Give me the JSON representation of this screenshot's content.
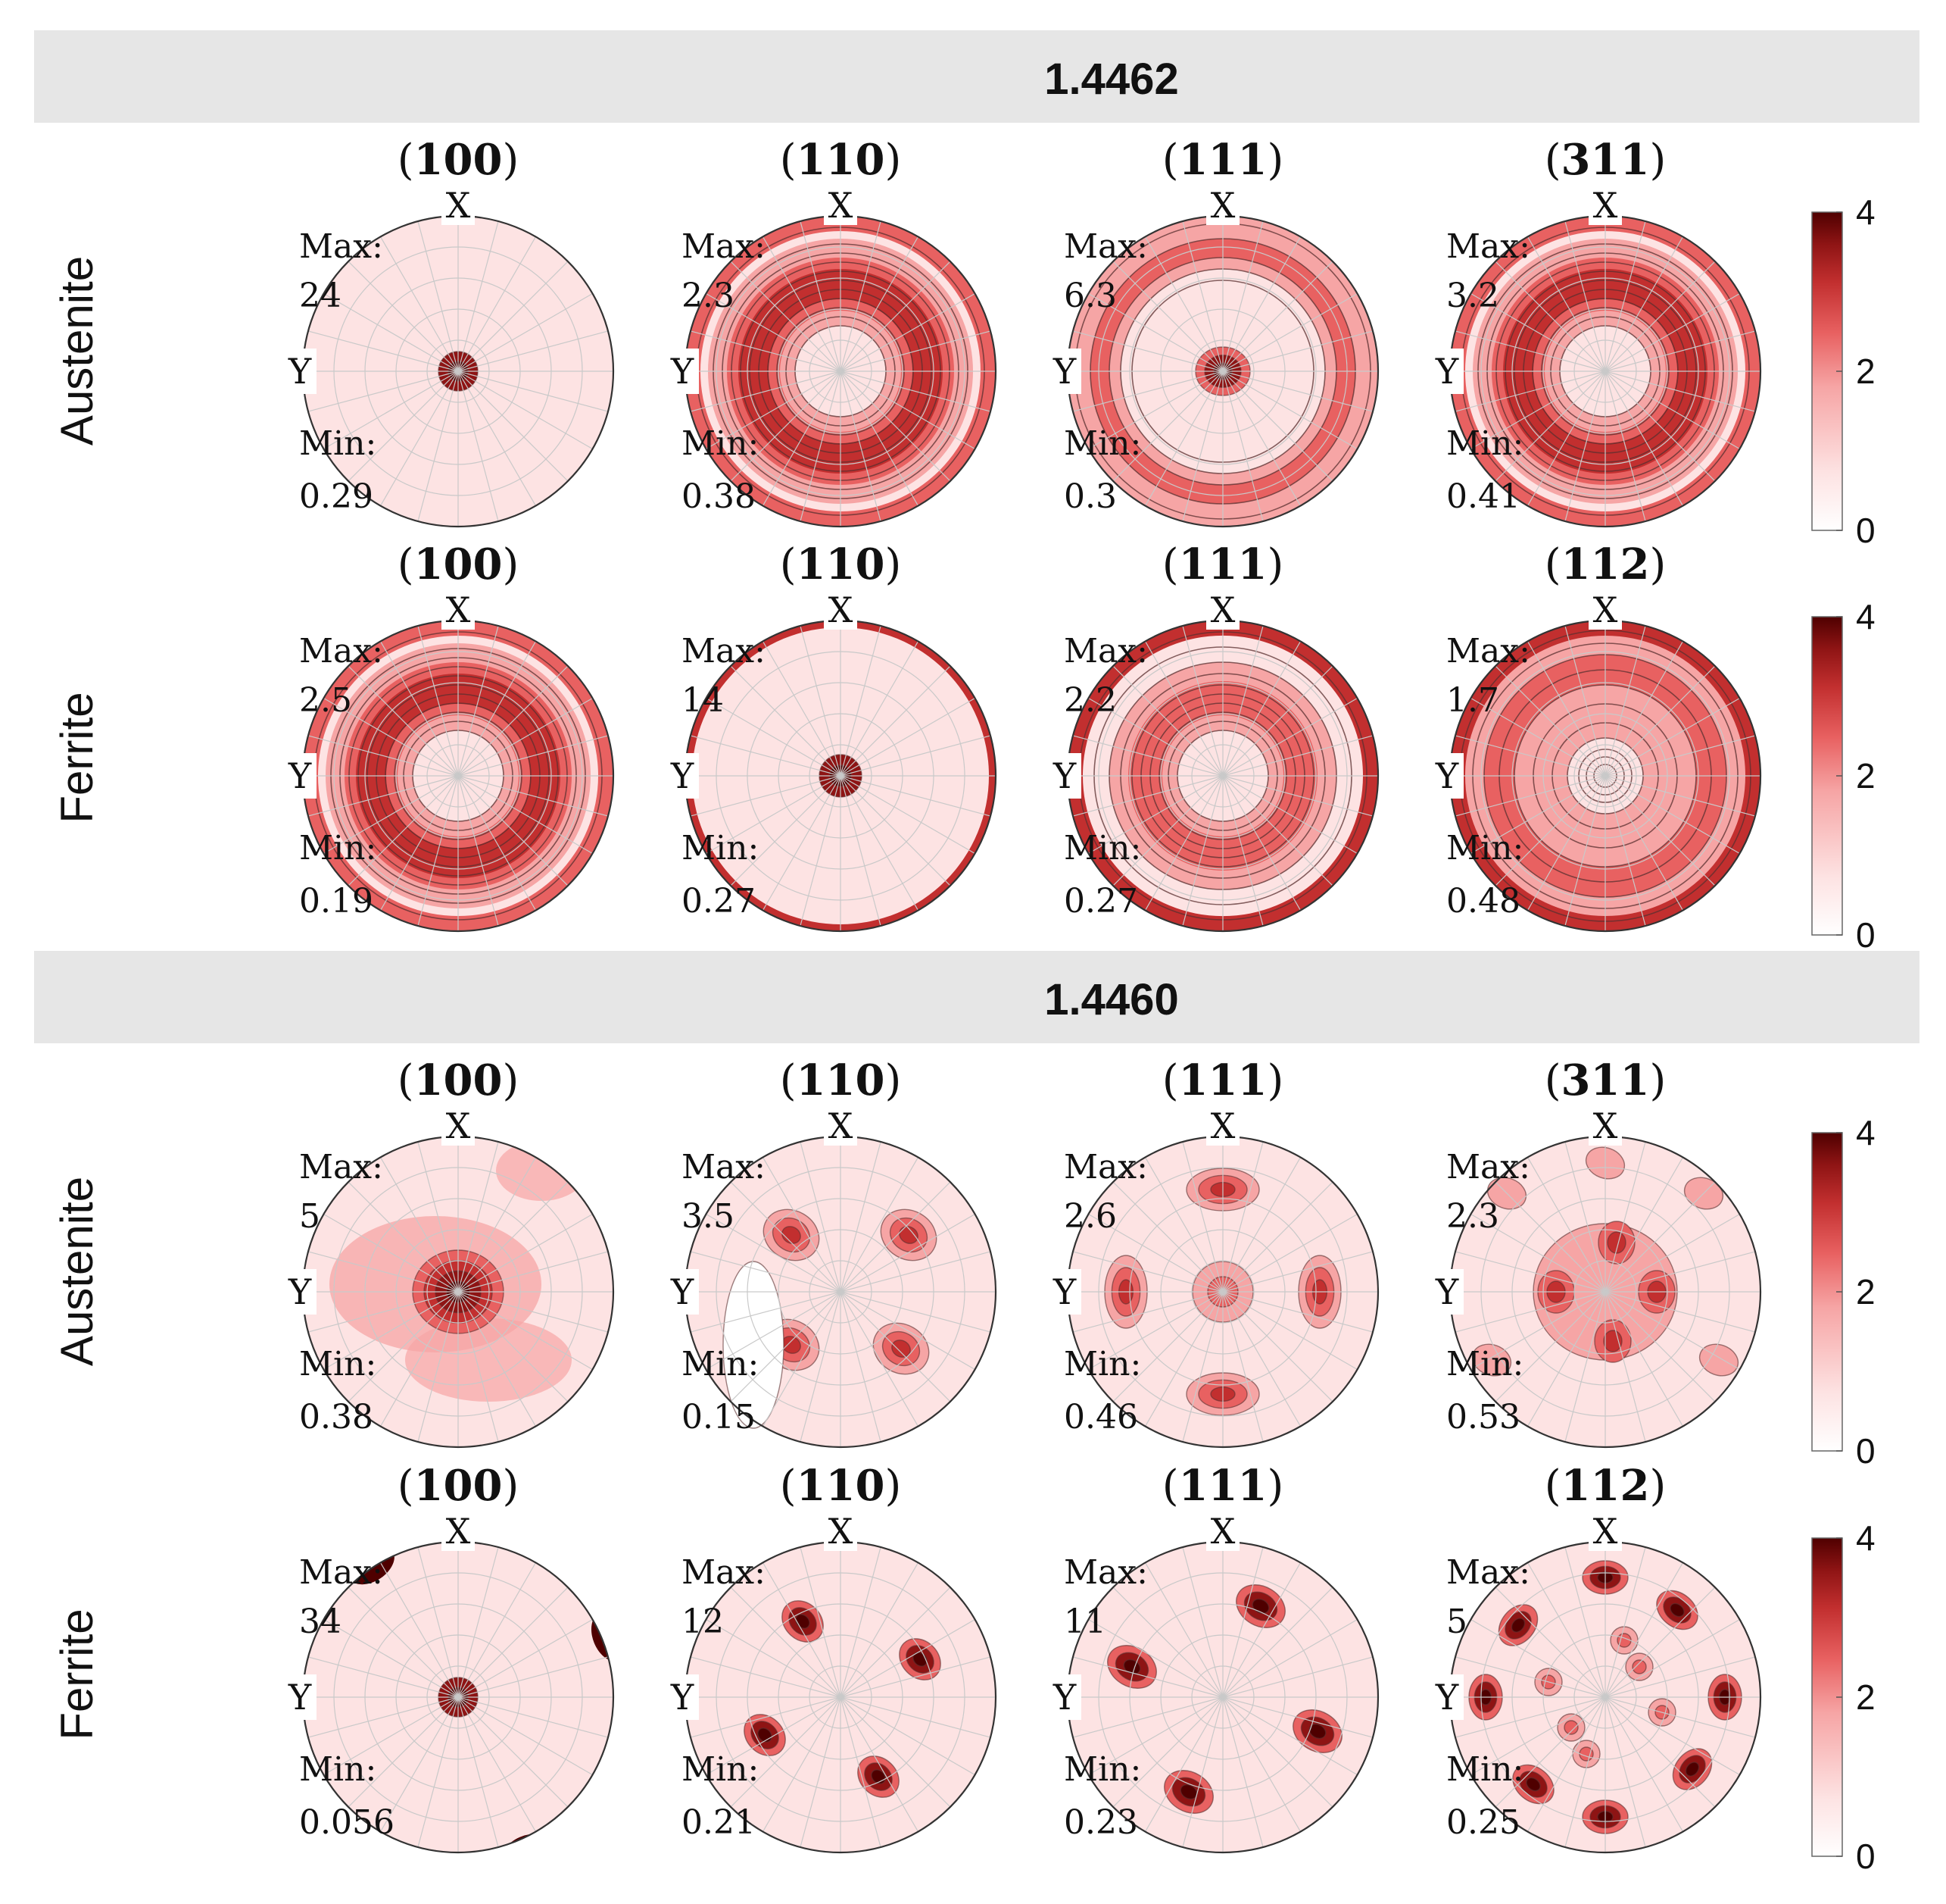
{
  "colors": {
    "banner": "#e6e6e6",
    "cmap": [
      "#ffffff",
      "#fde3e3",
      "#f6a5a5",
      "#e86161",
      "#c22f2f",
      "#8e1414",
      "#4f0000"
    ]
  },
  "colorbar": {
    "ticks": [
      "4",
      "2",
      "0"
    ],
    "range": [
      0,
      4
    ]
  },
  "axis_labels": {
    "x": "X",
    "y": "Y"
  },
  "stat_labels": {
    "max": "Max:",
    "min": "Min:"
  },
  "groups": [
    {
      "title": "1.4462",
      "rows": [
        {
          "phase": "Austenite",
          "plots": [
            {
              "hkl": "100",
              "max": "24",
              "min": "0.29",
              "pattern": "center"
            },
            {
              "hkl": "110",
              "max": "2.3",
              "min": "0.38",
              "pattern": "ring"
            },
            {
              "hkl": "111",
              "max": "6.3",
              "min": "0.3",
              "pattern": "center-ring"
            },
            {
              "hkl": "311",
              "max": "3.2",
              "min": "0.41",
              "pattern": "ring"
            }
          ]
        },
        {
          "phase": "Ferrite",
          "plots": [
            {
              "hkl": "100",
              "max": "2.5",
              "min": "0.19",
              "pattern": "ring"
            },
            {
              "hkl": "110",
              "max": "14",
              "min": "0.27",
              "pattern": "center-edge"
            },
            {
              "hkl": "111",
              "max": "2.2",
              "min": "0.27",
              "pattern": "ring-edge"
            },
            {
              "hkl": "112",
              "max": "1.7",
              "min": "0.48",
              "pattern": "rings"
            }
          ]
        }
      ]
    },
    {
      "title": "1.4460",
      "rows": [
        {
          "phase": "Austenite",
          "plots": [
            {
              "hkl": "100",
              "max": "5",
              "min": "0.38",
              "pattern": "cube-a"
            },
            {
              "hkl": "110",
              "max": "3.5",
              "min": "0.15",
              "pattern": "spots4-mid"
            },
            {
              "hkl": "111",
              "max": "2.6",
              "min": "0.46",
              "pattern": "spots4-axis"
            },
            {
              "hkl": "311",
              "max": "2.3",
              "min": "0.53",
              "pattern": "spots-many"
            }
          ]
        },
        {
          "phase": "Ferrite",
          "plots": [
            {
              "hkl": "100",
              "max": "34",
              "min": "0.056",
              "pattern": "cube-f"
            },
            {
              "hkl": "110",
              "max": "12",
              "min": "0.21",
              "pattern": "spots4-diag"
            },
            {
              "hkl": "111",
              "max": "11",
              "min": "0.23",
              "pattern": "spots4-diag2"
            },
            {
              "hkl": "112",
              "max": "5",
              "min": "0.25",
              "pattern": "spots8"
            }
          ]
        }
      ]
    }
  ]
}
